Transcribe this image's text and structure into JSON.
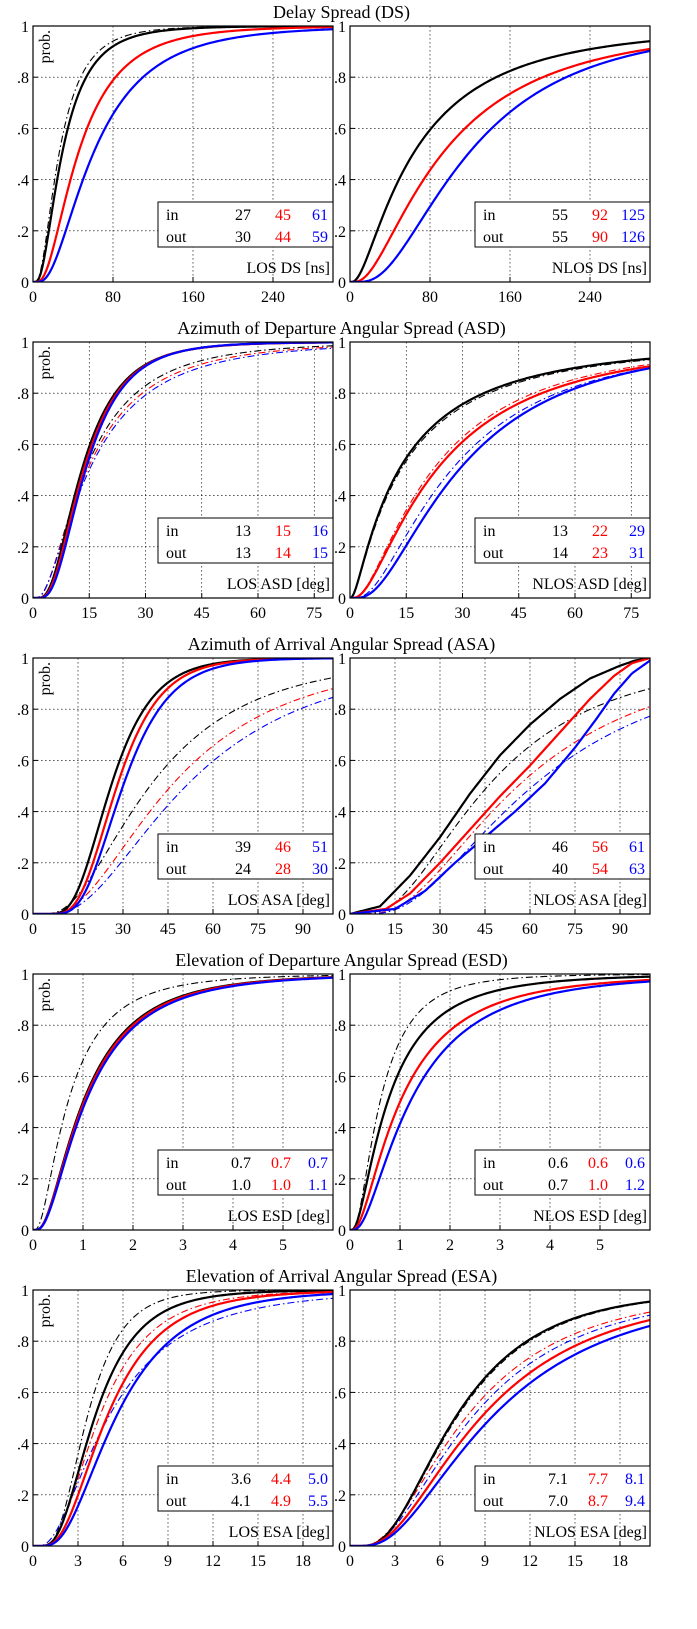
{
  "colors": {
    "black": "#000000",
    "red": "#ff0000",
    "blue": "#0000ff"
  },
  "legend_labels": {
    "row1": "in",
    "row2": "out"
  },
  "chart_data": [
    {
      "type": "line",
      "group_title": "Delay Spread (DS)",
      "xlabel": "LOS DS [ns]",
      "ylabel": "prob.",
      "xlim": [
        0,
        300
      ],
      "xticks": [
        0,
        80,
        160,
        240
      ],
      "ylim": [
        0,
        1
      ],
      "yticks": [
        0,
        0.2,
        0.4,
        0.6,
        0.8,
        1
      ],
      "yticklabels": [
        "0",
        ".2",
        ".4",
        ".6",
        ".8",
        "1"
      ],
      "grid": true,
      "table": {
        "in": [
          "27",
          "45",
          "61"
        ],
        "out": [
          "30",
          "44",
          "59"
        ]
      },
      "series": [
        {
          "color": "black",
          "style": "solid",
          "model": "lognormal",
          "median": 29,
          "sigma": 0.72
        },
        {
          "color": "red",
          "style": "solid",
          "model": "lognormal",
          "median": 45,
          "sigma": 0.72
        },
        {
          "color": "blue",
          "style": "solid",
          "model": "lognormal",
          "median": 60,
          "sigma": 0.72
        },
        {
          "color": "black",
          "style": "dashdot",
          "model": "lognormal",
          "median": 26,
          "sigma": 0.72
        }
      ]
    },
    {
      "type": "line",
      "group_title": "",
      "xlabel": "NLOS DS [ns]",
      "ylabel": "",
      "xlim": [
        0,
        300
      ],
      "xticks": [
        0,
        80,
        160,
        240
      ],
      "ylim": [
        0,
        1
      ],
      "yticks": [
        0,
        0.2,
        0.4,
        0.6,
        0.8,
        1
      ],
      "yticklabels": [
        "0",
        ".2",
        ".4",
        ".6",
        ".8",
        "1"
      ],
      "grid": true,
      "table": {
        "in": [
          "55",
          "92",
          "125"
        ],
        "out": [
          "55",
          "90",
          "126"
        ]
      },
      "series": [
        {
          "color": "black",
          "style": "solid",
          "model": "lognormal",
          "median": 63,
          "sigma": 1.0
        },
        {
          "color": "red",
          "style": "solid",
          "model": "lognormal",
          "median": 92,
          "sigma": 0.88
        },
        {
          "color": "blue",
          "style": "solid",
          "model": "lognormal",
          "median": 118,
          "sigma": 0.72
        },
        {
          "color": "black",
          "style": "dashdot",
          "model": "lognormal",
          "median": 63,
          "sigma": 1.0
        }
      ]
    },
    {
      "type": "line",
      "group_title": "Azimuth of Departure Angular Spread (ASD)",
      "xlabel": "LOS ASD [deg]",
      "ylabel": "prob.",
      "xlim": [
        0,
        80
      ],
      "xticks": [
        0,
        15,
        30,
        45,
        60,
        75
      ],
      "ylim": [
        0,
        1
      ],
      "yticks": [
        0,
        0.2,
        0.4,
        0.6,
        0.8,
        1
      ],
      "yticklabels": [
        "0",
        ".2",
        ".4",
        ".6",
        ".8",
        "1"
      ],
      "grid": true,
      "table": {
        "in": [
          "13",
          "15",
          "16"
        ],
        "out": [
          "13",
          "14",
          "15"
        ]
      },
      "series": [
        {
          "color": "black",
          "style": "solid",
          "model": "lognormal",
          "median": 13,
          "sigma": 0.62
        },
        {
          "color": "red",
          "style": "solid",
          "model": "lognormal",
          "median": 13.5,
          "sigma": 0.6
        },
        {
          "color": "blue",
          "style": "solid",
          "model": "lognormal",
          "median": 14,
          "sigma": 0.58
        },
        {
          "color": "black",
          "style": "dashdot",
          "model": "lognormal",
          "median": 14,
          "sigma": 0.8
        },
        {
          "color": "red",
          "style": "dashdot",
          "model": "lognormal",
          "median": 14.5,
          "sigma": 0.83
        },
        {
          "color": "blue",
          "style": "dashdot",
          "model": "lognormal",
          "median": 15,
          "sigma": 0.85
        }
      ]
    },
    {
      "type": "line",
      "group_title": "",
      "xlabel": "NLOS ASD [deg]",
      "ylabel": "",
      "xlim": [
        0,
        80
      ],
      "xticks": [
        0,
        15,
        30,
        45,
        60,
        75
      ],
      "ylim": [
        0,
        1
      ],
      "yticks": [
        0,
        0.2,
        0.4,
        0.6,
        0.8,
        1
      ],
      "yticklabels": [
        "0",
        ".2",
        ".4",
        ".6",
        ".8",
        "1"
      ],
      "grid": true,
      "table": {
        "in": [
          "13",
          "22",
          "29"
        ],
        "out": [
          "14",
          "23",
          "31"
        ]
      },
      "series": [
        {
          "color": "black",
          "style": "solid",
          "model": "lognormal",
          "median": 13,
          "sigma": 1.2
        },
        {
          "color": "red",
          "style": "solid",
          "model": "lognormal",
          "median": 23,
          "sigma": 0.95
        },
        {
          "color": "blue",
          "style": "solid",
          "model": "lognormal",
          "median": 29,
          "sigma": 0.8
        },
        {
          "color": "black",
          "style": "dashdot",
          "model": "lognormal",
          "median": 13.5,
          "sigma": 1.2
        },
        {
          "color": "red",
          "style": "dashdot",
          "model": "lognormal",
          "median": 22,
          "sigma": 0.95
        },
        {
          "color": "blue",
          "style": "dashdot",
          "model": "lognormal",
          "median": 27,
          "sigma": 0.85
        }
      ]
    },
    {
      "type": "line",
      "group_title": "Azimuth of Arrival Angular Spread (ASA)",
      "xlabel": "LOS ASA [deg]",
      "ylabel": "prob.",
      "xlim": [
        0,
        100
      ],
      "xticks": [
        0,
        15,
        30,
        45,
        60,
        75,
        90
      ],
      "ylim": [
        0,
        1
      ],
      "yticks": [
        0,
        0.2,
        0.4,
        0.6,
        0.8,
        1
      ],
      "yticklabels": [
        "0",
        ".2",
        ".4",
        ".6",
        ".8",
        "1"
      ],
      "grid": true,
      "table": {
        "in": [
          "39",
          "46",
          "51"
        ],
        "out": [
          "24",
          "28",
          "30"
        ]
      },
      "series": [
        {
          "color": "black",
          "style": "solid",
          "model": "lognormal",
          "median": 26,
          "sigma": 0.42
        },
        {
          "color": "red",
          "style": "solid",
          "model": "lognormal",
          "median": 28,
          "sigma": 0.4
        },
        {
          "color": "blue",
          "style": "solid",
          "model": "lognormal",
          "median": 30,
          "sigma": 0.4
        },
        {
          "color": "black",
          "style": "dashdot",
          "model": "lognormal",
          "median": 39,
          "sigma": 0.66
        },
        {
          "color": "red",
          "style": "dashdot",
          "model": "lognormal",
          "median": 46,
          "sigma": 0.66
        },
        {
          "color": "blue",
          "style": "dashdot",
          "model": "lognormal",
          "median": 51,
          "sigma": 0.66
        }
      ]
    },
    {
      "type": "line",
      "group_title": "",
      "xlabel": "NLOS ASA [deg]",
      "ylabel": "",
      "xlim": [
        0,
        100
      ],
      "xticks": [
        0,
        15,
        30,
        45,
        60,
        75,
        90
      ],
      "ylim": [
        0,
        1
      ],
      "yticks": [
        0,
        0.2,
        0.4,
        0.6,
        0.8,
        1
      ],
      "yticklabels": [
        "0",
        ".2",
        ".4",
        ".6",
        ".8",
        "1"
      ],
      "grid": true,
      "table": {
        "in": [
          "46",
          "56",
          "61"
        ],
        "out": [
          "40",
          "54",
          "63"
        ]
      },
      "series": [
        {
          "color": "black",
          "style": "solid",
          "model": "points",
          "x": [
            0,
            10,
            20,
            30,
            40,
            50,
            60,
            70,
            80,
            90,
            95,
            100
          ],
          "y": [
            0,
            0.03,
            0.15,
            0.3,
            0.47,
            0.62,
            0.74,
            0.84,
            0.92,
            0.97,
            0.99,
            1.0
          ]
        },
        {
          "color": "red",
          "style": "solid",
          "model": "points",
          "x": [
            0,
            12,
            20,
            30,
            40,
            50,
            60,
            70,
            80,
            88,
            94,
            100
          ],
          "y": [
            0,
            0.02,
            0.08,
            0.2,
            0.33,
            0.46,
            0.58,
            0.71,
            0.84,
            0.93,
            0.98,
            1.0
          ]
        },
        {
          "color": "blue",
          "style": "solid",
          "model": "points",
          "x": [
            0,
            15,
            25,
            35,
            45,
            55,
            65,
            75,
            82,
            88,
            94,
            100
          ],
          "y": [
            0,
            0.02,
            0.09,
            0.2,
            0.3,
            0.4,
            0.51,
            0.65,
            0.76,
            0.86,
            0.94,
            0.99
          ]
        },
        {
          "color": "black",
          "style": "dashdot",
          "model": "lognormal",
          "median": 46,
          "sigma": 0.66
        },
        {
          "color": "red",
          "style": "dashdot",
          "model": "lognormal",
          "median": 56,
          "sigma": 0.66
        },
        {
          "color": "blue",
          "style": "dashdot",
          "model": "lognormal",
          "median": 61,
          "sigma": 0.66
        }
      ]
    },
    {
      "type": "line",
      "group_title": "Elevation of Departure Angular Spread (ESD)",
      "xlabel": "LOS ESD [deg]",
      "ylabel": "prob.",
      "xlim": [
        0,
        6
      ],
      "xticks": [
        0,
        1,
        2,
        3,
        4,
        5
      ],
      "ylim": [
        0,
        1
      ],
      "yticks": [
        0,
        0.2,
        0.4,
        0.6,
        0.8,
        1
      ],
      "yticklabels": [
        "0",
        ".2",
        ".4",
        ".6",
        ".8",
        "1"
      ],
      "grid": true,
      "table": {
        "in": [
          "0.7",
          "0.7",
          "0.7"
        ],
        "out": [
          "1.0",
          "1.0",
          "1.1"
        ]
      },
      "series": [
        {
          "color": "black",
          "style": "solid",
          "model": "lognormal",
          "median": 1.0,
          "sigma": 0.8
        },
        {
          "color": "red",
          "style": "solid",
          "model": "lognormal",
          "median": 1.02,
          "sigma": 0.8
        },
        {
          "color": "blue",
          "style": "solid",
          "model": "lognormal",
          "median": 1.05,
          "sigma": 0.8
        },
        {
          "color": "black",
          "style": "dashdot",
          "model": "lognormal",
          "median": 0.7,
          "sigma": 0.85
        }
      ]
    },
    {
      "type": "line",
      "group_title": "",
      "xlabel": "NLOS ESD [deg]",
      "ylabel": "",
      "xlim": [
        0,
        6
      ],
      "xticks": [
        0,
        1,
        2,
        3,
        4,
        5
      ],
      "ylim": [
        0,
        1
      ],
      "yticks": [
        0,
        0.2,
        0.4,
        0.6,
        0.8,
        1
      ],
      "yticklabels": [
        "0",
        ".2",
        ".4",
        ".6",
        ".8",
        "1"
      ],
      "grid": true,
      "table": {
        "in": [
          "0.6",
          "0.6",
          "0.6"
        ],
        "out": [
          "0.7",
          "1.0",
          "1.2"
        ]
      },
      "series": [
        {
          "color": "black",
          "style": "solid",
          "model": "lognormal",
          "median": 0.75,
          "sigma": 0.9
        },
        {
          "color": "red",
          "style": "solid",
          "model": "lognormal",
          "median": 1.0,
          "sigma": 0.9
        },
        {
          "color": "blue",
          "style": "solid",
          "model": "lognormal",
          "median": 1.2,
          "sigma": 0.85
        },
        {
          "color": "black",
          "style": "dashdot",
          "model": "lognormal",
          "median": 0.6,
          "sigma": 0.8
        }
      ]
    },
    {
      "type": "line",
      "group_title": "Elevation of Arrival Angular Spread (ESA)",
      "xlabel": "LOS ESA [deg]",
      "ylabel": "prob.",
      "xlim": [
        0,
        20
      ],
      "xticks": [
        0,
        3,
        6,
        9,
        12,
        15,
        18
      ],
      "ylim": [
        0,
        1
      ],
      "yticks": [
        0,
        0.2,
        0.4,
        0.6,
        0.8,
        1
      ],
      "yticklabels": [
        "0",
        ".2",
        ".4",
        ".6",
        ".8",
        "1"
      ],
      "grid": true,
      "table": {
        "in": [
          "3.6",
          "4.4",
          "5.0"
        ],
        "out": [
          "4.1",
          "4.9",
          "5.5"
        ]
      },
      "series": [
        {
          "color": "black",
          "style": "solid",
          "model": "lognormal",
          "median": 4.1,
          "sigma": 0.55
        },
        {
          "color": "red",
          "style": "solid",
          "model": "lognormal",
          "median": 4.9,
          "sigma": 0.58
        },
        {
          "color": "blue",
          "style": "solid",
          "model": "lognormal",
          "median": 5.5,
          "sigma": 0.6
        },
        {
          "color": "black",
          "style": "dashdot",
          "model": "lognormal",
          "median": 3.6,
          "sigma": 0.5
        },
        {
          "color": "red",
          "style": "dashdot",
          "model": "lognormal",
          "median": 4.4,
          "sigma": 0.6
        },
        {
          "color": "blue",
          "style": "dashdot",
          "model": "lognormal",
          "median": 5.0,
          "sigma": 0.75
        }
      ]
    },
    {
      "type": "line",
      "group_title": "",
      "xlabel": "NLOS ESA [deg]",
      "ylabel": "",
      "xlim": [
        0,
        20
      ],
      "xticks": [
        0,
        3,
        6,
        9,
        12,
        15,
        18
      ],
      "ylim": [
        0,
        1
      ],
      "yticks": [
        0,
        0.2,
        0.4,
        0.6,
        0.8,
        1
      ],
      "yticklabels": [
        "0",
        ".2",
        ".4",
        ".6",
        ".8",
        "1"
      ],
      "grid": true,
      "table": {
        "in": [
          "7.1",
          "7.7",
          "8.1"
        ],
        "out": [
          "7.0",
          "8.7",
          "9.4"
        ]
      },
      "series": [
        {
          "color": "black",
          "style": "solid",
          "model": "lognormal",
          "median": 7.0,
          "sigma": 0.62
        },
        {
          "color": "red",
          "style": "solid",
          "model": "lognormal",
          "median": 8.7,
          "sigma": 0.7
        },
        {
          "color": "blue",
          "style": "solid",
          "model": "lognormal",
          "median": 9.4,
          "sigma": 0.7
        },
        {
          "color": "black",
          "style": "dashdot",
          "model": "lognormal",
          "median": 7.1,
          "sigma": 0.62
        },
        {
          "color": "red",
          "style": "dashdot",
          "model": "lognormal",
          "median": 7.7,
          "sigma": 0.7
        },
        {
          "color": "blue",
          "style": "dashdot",
          "model": "lognormal",
          "median": 8.1,
          "sigma": 0.7
        }
      ]
    }
  ]
}
